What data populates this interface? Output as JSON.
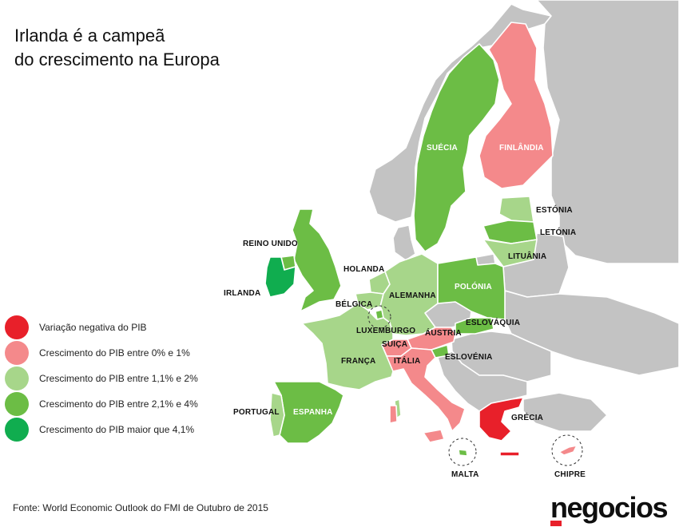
{
  "title": {
    "line1": "Irlanda é a campeã",
    "line2": "do crescimento na Europa"
  },
  "colors": {
    "negative": "#e8202a",
    "g0_1": "#f4898b",
    "g1_2": "#a7d68a",
    "g2_4": "#6cbd45",
    "g4plus": "#10ad4f",
    "no_data": "#c3c3c3"
  },
  "legend": [
    {
      "label": "Variação negativa do PIB",
      "color": "#e8202a"
    },
    {
      "label": "Crescimento do PIB entre 0% e 1%",
      "color": "#f4898b"
    },
    {
      "label": "Crescimento do PIB entre 1,1% e 2%",
      "color": "#a7d68a"
    },
    {
      "label": "Crescimento do PIB entre 2,1% e 4%",
      "color": "#6cbd45"
    },
    {
      "label": "Crescimento do PIB maior que 4,1%",
      "color": "#10ad4f"
    }
  ],
  "countries": {
    "suecia": {
      "name": "SUÉCIA",
      "category": "Crescimento do PIB entre 2,1% e 4%"
    },
    "finlandia": {
      "name": "FINLÂNDIA",
      "category": "Crescimento do PIB entre 0% e 1%"
    },
    "estonia": {
      "name": "ESTÓNIA",
      "category": "Crescimento do PIB entre 1,1% e 2%"
    },
    "letonia": {
      "name": "LETÓNIA",
      "category": "Crescimento do PIB entre 2,1% e 4%"
    },
    "lituania": {
      "name": "LITUÂNIA",
      "category": "Crescimento do PIB entre 1,1% e 2%"
    },
    "reino_unido": {
      "name": "REINO UNIDO",
      "category": "Crescimento do PIB entre 2,1% e 4%"
    },
    "irlanda": {
      "name": "IRLANDA",
      "category": "Crescimento do PIB maior que 4,1%"
    },
    "holanda": {
      "name": "HOLANDA",
      "category": "Crescimento do PIB entre 1,1% e 2%"
    },
    "alemanha": {
      "name": "ALEMANHA",
      "category": "Crescimento do PIB entre 1,1% e 2%"
    },
    "polonia": {
      "name": "POLÓNIA",
      "category": "Crescimento do PIB entre 2,1% e 4%"
    },
    "belgica": {
      "name": "BÉLGICA",
      "category": "Crescimento do PIB entre 1,1% e 2%"
    },
    "luxemburgo": {
      "name": "LUXEMBURGO",
      "category": "Crescimento do PIB entre 2,1% e 4%"
    },
    "austria": {
      "name": "ÁUSTRIA",
      "category": "Crescimento do PIB entre 0% e 1%"
    },
    "eslovaquia": {
      "name": "ESLOVÁQUIA",
      "category": "Crescimento do PIB entre 2,1% e 4%"
    },
    "suica": {
      "name": "SUIÇA",
      "category": "Crescimento do PIB entre 0% e 1%"
    },
    "franca": {
      "name": "FRANÇA",
      "category": "Crescimento do PIB entre 1,1% e 2%"
    },
    "italia": {
      "name": "ITÁLIA",
      "category": "Crescimento do PIB entre 0% e 1%"
    },
    "eslovenia": {
      "name": "ESLOVÉNIA",
      "category": "Crescimento do PIB entre 2,1% e 4%"
    },
    "portugal": {
      "name": "PORTUGAL",
      "category": "Crescimento do PIB entre 1,1% e 2%"
    },
    "espanha": {
      "name": "ESPANHA",
      "category": "Crescimento do PIB entre 2,1% e 4%"
    },
    "grecia": {
      "name": "GRÉCIA",
      "category": "Variação negativa do PIB"
    },
    "malta": {
      "name": "MALTA",
      "category": "Crescimento do PIB entre 2,1% e 4%"
    },
    "chipre": {
      "name": "CHIPRE",
      "category": "Crescimento do PIB entre 0% e 1%"
    }
  },
  "source": "Fonte: World Economic Outlook do FMI de Outubro de 2015",
  "logo": {
    "text": "negocios",
    "bar_color": "#e8202a"
  }
}
